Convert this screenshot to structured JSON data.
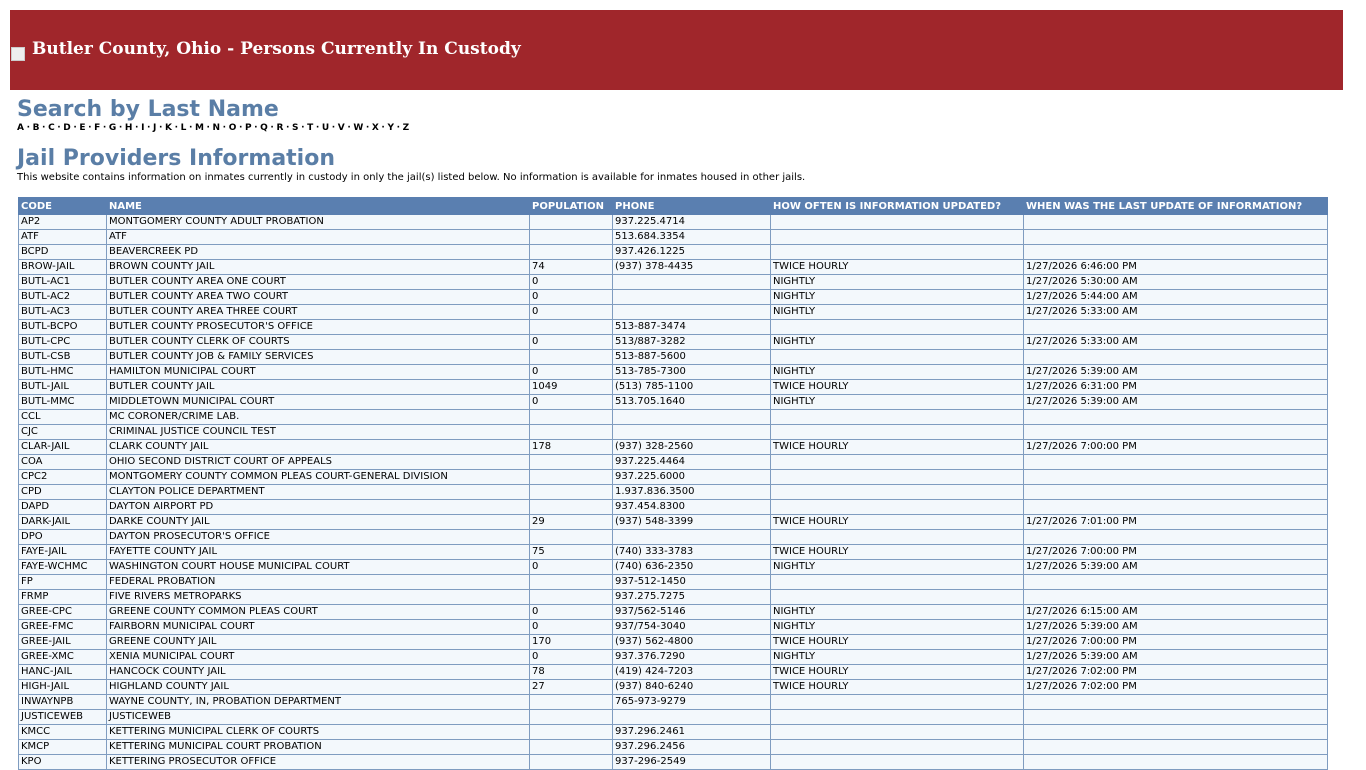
{
  "header": {
    "title": "Butler County, Ohio - Persons Currently In Custody"
  },
  "search": {
    "heading": "Search by Last Name",
    "letters": [
      "A",
      "B",
      "C",
      "D",
      "E",
      "F",
      "G",
      "H",
      "I",
      "J",
      "K",
      "L",
      "M",
      "N",
      "O",
      "P",
      "Q",
      "R",
      "S",
      "T",
      "U",
      "V",
      "W",
      "X",
      "Y",
      "Z"
    ]
  },
  "providers": {
    "heading": "Jail Providers Information",
    "description": "This website contains information on inmates currently in custody in only the jail(s) listed below. No information is available for inmates housed in other jails."
  },
  "table": {
    "columns": [
      "CODE",
      "NAME",
      "POPULATION",
      "PHONE",
      "HOW OFTEN IS INFORMATION UPDATED?",
      "WHEN WAS THE LAST UPDATE OF INFORMATION?"
    ],
    "rows": [
      [
        "AP2",
        "MONTGOMERY COUNTY ADULT PROBATION",
        null,
        "937.225.4714",
        null,
        null
      ],
      [
        "ATF",
        "ATF",
        null,
        "513.684.3354",
        null,
        null
      ],
      [
        "BCPD",
        "BEAVERCREEK PD",
        null,
        "937.426.1225",
        null,
        null
      ],
      [
        "BROW-JAIL",
        "BROWN COUNTY JAIL",
        74,
        "(937) 378-4435",
        "TWICE HOURLY",
        "1/27/2026 6:46:00 PM"
      ],
      [
        "BUTL-AC1",
        "BUTLER COUNTY AREA ONE COURT",
        0,
        null,
        "NIGHTLY",
        "1/27/2026 5:30:00 AM"
      ],
      [
        "BUTL-AC2",
        "BUTLER COUNTY AREA TWO COURT",
        0,
        null,
        "NIGHTLY",
        "1/27/2026 5:44:00 AM"
      ],
      [
        "BUTL-AC3",
        "BUTLER COUNTY AREA THREE COURT",
        0,
        null,
        "NIGHTLY",
        "1/27/2026 5:33:00 AM"
      ],
      [
        "BUTL-BCPO",
        "BUTLER COUNTY PROSECUTOR'S OFFICE",
        null,
        "513-887-3474",
        null,
        null
      ],
      [
        "BUTL-CPC",
        "BUTLER COUNTY CLERK OF COURTS",
        0,
        "513/887-3282",
        "NIGHTLY",
        "1/27/2026 5:33:00 AM"
      ],
      [
        "BUTL-CSB",
        "BUTLER COUNTY JOB & FAMILY SERVICES",
        null,
        "513-887-5600",
        null,
        null
      ],
      [
        "BUTL-HMC",
        "HAMILTON MUNICIPAL COURT",
        0,
        "513-785-7300",
        "NIGHTLY",
        "1/27/2026 5:39:00 AM"
      ],
      [
        "BUTL-JAIL",
        "BUTLER COUNTY JAIL",
        1049,
        "(513) 785-1100",
        "TWICE HOURLY",
        "1/27/2026 6:31:00 PM"
      ],
      [
        "BUTL-MMC",
        "MIDDLETOWN MUNICIPAL COURT",
        0,
        "513.705.1640",
        "NIGHTLY",
        "1/27/2026 5:39:00 AM"
      ],
      [
        "CCL",
        "MC CORONER/CRIME LAB.",
        null,
        null,
        null,
        null
      ],
      [
        "CJC",
        "CRIMINAL JUSTICE COUNCIL TEST",
        null,
        null,
        null,
        null
      ],
      [
        "CLAR-JAIL",
        "CLARK COUNTY JAIL",
        178,
        "(937) 328-2560",
        "TWICE HOURLY",
        "1/27/2026 7:00:00 PM"
      ],
      [
        "COA",
        "OHIO SECOND DISTRICT COURT OF APPEALS",
        null,
        "937.225.4464",
        null,
        null
      ],
      [
        "CPC2",
        "MONTGOMERY COUNTY COMMON PLEAS COURT-GENERAL DIVISION",
        null,
        "937.225.6000",
        null,
        null
      ],
      [
        "CPD",
        "CLAYTON POLICE DEPARTMENT",
        null,
        "1.937.836.3500",
        null,
        null
      ],
      [
        "DAPD",
        "DAYTON AIRPORT PD",
        null,
        "937.454.8300",
        null,
        null
      ],
      [
        "DARK-JAIL",
        "DARKE COUNTY JAIL",
        29,
        "(937) 548-3399",
        "TWICE HOURLY",
        "1/27/2026 7:01:00 PM"
      ],
      [
        "DPO",
        "DAYTON PROSECUTOR'S OFFICE",
        null,
        null,
        null,
        null
      ],
      [
        "FAYE-JAIL",
        "FAYETTE COUNTY JAIL",
        75,
        "(740) 333-3783",
        "TWICE HOURLY",
        "1/27/2026 7:00:00 PM"
      ],
      [
        "FAYE-WCHMC",
        "WASHINGTON COURT HOUSE MUNICIPAL COURT",
        0,
        "(740) 636-2350",
        "NIGHTLY",
        "1/27/2026 5:39:00 AM"
      ],
      [
        "FP",
        "FEDERAL PROBATION",
        null,
        "937-512-1450",
        null,
        null
      ],
      [
        "FRMP",
        "FIVE RIVERS METROPARKS",
        null,
        "937.275.7275",
        null,
        null
      ],
      [
        "GREE-CPC",
        "GREENE COUNTY COMMON PLEAS COURT",
        0,
        "937/562-5146",
        "NIGHTLY",
        "1/27/2026 6:15:00 AM"
      ],
      [
        "GREE-FMC",
        "FAIRBORN MUNICIPAL COURT",
        0,
        "937/754-3040",
        "NIGHTLY",
        "1/27/2026 5:39:00 AM"
      ],
      [
        "GREE-JAIL",
        "GREENE COUNTY JAIL",
        170,
        "(937) 562-4800",
        "TWICE HOURLY",
        "1/27/2026 7:00:00 PM"
      ],
      [
        "GREE-XMC",
        "XENIA MUNICIPAL COURT",
        0,
        "937.376.7290",
        "NIGHTLY",
        "1/27/2026 5:39:00 AM"
      ],
      [
        "HANC-JAIL",
        "HANCOCK COUNTY JAIL",
        78,
        "(419) 424-7203",
        "TWICE HOURLY",
        "1/27/2026 7:02:00 PM"
      ],
      [
        "HIGH-JAIL",
        "HIGHLAND COUNTY JAIL",
        27,
        "(937) 840-6240",
        "TWICE HOURLY",
        "1/27/2026 7:02:00 PM"
      ],
      [
        "INWAYNPB",
        "WAYNE COUNTY, IN, PROBATION DEPARTMENT",
        null,
        "765-973-9279",
        null,
        null
      ],
      [
        "JUSTICEWEB",
        "JUSTICEWEB",
        null,
        null,
        null,
        null
      ],
      [
        "KMCC",
        "KETTERING MUNICIPAL CLERK OF COURTS",
        null,
        "937.296.2461",
        null,
        null
      ],
      [
        "KMCP",
        "KETTERING MUNICIPAL COURT PROBATION",
        null,
        "937.296.2456",
        null,
        null
      ],
      [
        "KPO",
        "KETTERING PROSECUTOR OFFICE",
        null,
        "937-296-2549",
        null,
        null
      ]
    ]
  }
}
